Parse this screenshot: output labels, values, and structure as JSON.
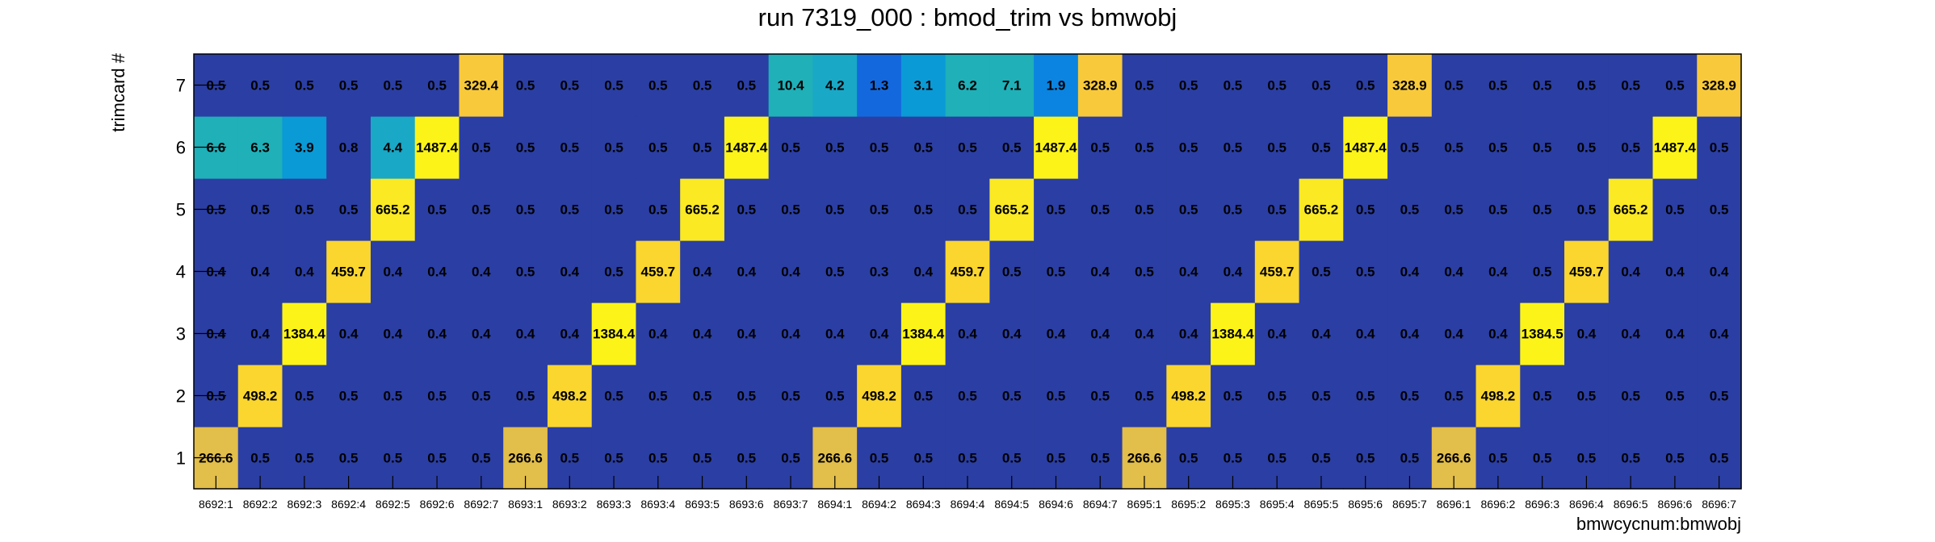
{
  "chart_data": {
    "type": "heatmap",
    "title": "run 7319_000 : bmod_trim vs bmwobj",
    "xlabel": "bmwcycnum:bmwobj",
    "ylabel": "trimcard #",
    "x_categories": [
      "8692:1",
      "8692:2",
      "8692:3",
      "8692:4",
      "8692:5",
      "8692:6",
      "8692:7",
      "8693:1",
      "8693:2",
      "8693:3",
      "8693:4",
      "8693:5",
      "8693:6",
      "8693:7",
      "8694:1",
      "8694:2",
      "8694:3",
      "8694:4",
      "8694:5",
      "8694:6",
      "8694:7",
      "8695:1",
      "8695:2",
      "8695:3",
      "8695:4",
      "8695:5",
      "8695:6",
      "8695:7",
      "8696:1",
      "8696:2",
      "8696:3",
      "8696:4",
      "8696:5",
      "8696:6",
      "8696:7"
    ],
    "y_categories": [
      "1",
      "2",
      "3",
      "4",
      "5",
      "6",
      "7"
    ],
    "values": [
      [
        "266.6",
        "0.5",
        "0.5",
        "0.5",
        "0.5",
        "0.5",
        "0.5",
        "266.6",
        "0.5",
        "0.5",
        "0.5",
        "0.5",
        "0.5",
        "0.5",
        "266.6",
        "0.5",
        "0.5",
        "0.5",
        "0.5",
        "0.5",
        "0.5",
        "266.6",
        "0.5",
        "0.5",
        "0.5",
        "0.5",
        "0.5",
        "0.5",
        "266.6",
        "0.5",
        "0.5",
        "0.5",
        "0.5",
        "0.5",
        "0.5"
      ],
      [
        "0.5",
        "498.2",
        "0.5",
        "0.5",
        "0.5",
        "0.5",
        "0.5",
        "0.5",
        "498.2",
        "0.5",
        "0.5",
        "0.5",
        "0.5",
        "0.5",
        "0.5",
        "498.2",
        "0.5",
        "0.5",
        "0.5",
        "0.5",
        "0.5",
        "0.5",
        "498.2",
        "0.5",
        "0.5",
        "0.5",
        "0.5",
        "0.5",
        "0.5",
        "498.2",
        "0.5",
        "0.5",
        "0.5",
        "0.5",
        "0.5"
      ],
      [
        "0.4",
        "0.4",
        "1384.4",
        "0.4",
        "0.4",
        "0.4",
        "0.4",
        "0.4",
        "0.4",
        "1384.4",
        "0.4",
        "0.4",
        "0.4",
        "0.4",
        "0.4",
        "0.4",
        "1384.4",
        "0.4",
        "0.4",
        "0.4",
        "0.4",
        "0.4",
        "0.4",
        "1384.4",
        "0.4",
        "0.4",
        "0.4",
        "0.4",
        "0.4",
        "0.4",
        "1384.5",
        "0.4",
        "0.4",
        "0.4",
        "0.4"
      ],
      [
        "0.4",
        "0.4",
        "0.4",
        "459.7",
        "0.4",
        "0.4",
        "0.4",
        "0.5",
        "0.4",
        "0.5",
        "459.7",
        "0.4",
        "0.4",
        "0.4",
        "0.5",
        "0.3",
        "0.4",
        "459.7",
        "0.5",
        "0.5",
        "0.4",
        "0.5",
        "0.4",
        "0.4",
        "459.7",
        "0.5",
        "0.5",
        "0.4",
        "0.4",
        "0.4",
        "0.5",
        "459.7",
        "0.4",
        "0.4",
        "0.4"
      ],
      [
        "0.5",
        "0.5",
        "0.5",
        "0.5",
        "665.2",
        "0.5",
        "0.5",
        "0.5",
        "0.5",
        "0.5",
        "0.5",
        "665.2",
        "0.5",
        "0.5",
        "0.5",
        "0.5",
        "0.5",
        "0.5",
        "665.2",
        "0.5",
        "0.5",
        "0.5",
        "0.5",
        "0.5",
        "0.5",
        "665.2",
        "0.5",
        "0.5",
        "0.5",
        "0.5",
        "0.5",
        "0.5",
        "665.2",
        "0.5",
        "0.5"
      ],
      [
        "6.6",
        "6.3",
        "3.9",
        "0.8",
        "4.4",
        "1487.4",
        "0.5",
        "0.5",
        "0.5",
        "0.5",
        "0.5",
        "0.5",
        "1487.4",
        "0.5",
        "0.5",
        "0.5",
        "0.5",
        "0.5",
        "0.5",
        "1487.4",
        "0.5",
        "0.5",
        "0.5",
        "0.5",
        "0.5",
        "0.5",
        "1487.4",
        "0.5",
        "0.5",
        "0.5",
        "0.5",
        "0.5",
        "0.5",
        "1487.4",
        "0.5"
      ],
      [
        "0.5",
        "0.5",
        "0.5",
        "0.5",
        "0.5",
        "0.5",
        "329.4",
        "0.5",
        "0.5",
        "0.5",
        "0.5",
        "0.5",
        "0.5",
        "10.4",
        "4.2",
        "1.3",
        "3.1",
        "6.2",
        "7.1",
        "1.9",
        "328.9",
        "0.5",
        "0.5",
        "0.5",
        "0.5",
        "0.5",
        "0.5",
        "328.9",
        "0.5",
        "0.5",
        "0.5",
        "0.5",
        "0.5",
        "0.5",
        "328.9"
      ]
    ],
    "colors": {
      "low": "#2b3ea3",
      "mid_1": "#1468dd",
      "mid_2": "#0a84e0",
      "mid_3": "#0a9ad6",
      "mid_4": "#19a8c6",
      "mid_5": "#1fb0b8",
      "hi_1": "#e2be4a",
      "hi_2": "#f8c93a",
      "hi_3": "#fad62e",
      "hi_4": "#fae923",
      "hi_5": "#fcf418"
    }
  }
}
